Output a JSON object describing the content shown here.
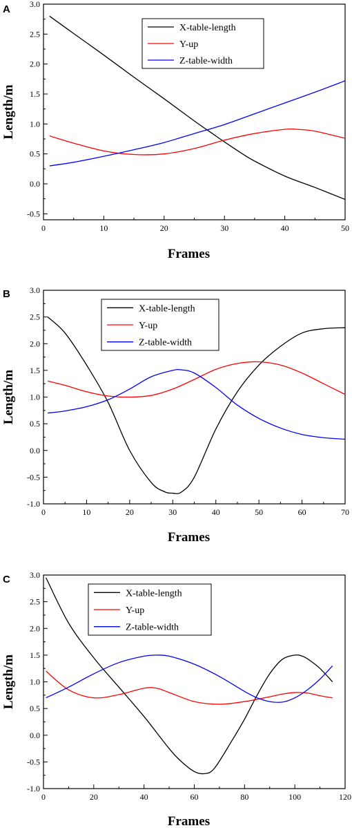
{
  "chart_data": [
    {
      "panel": "A",
      "type": "line",
      "xlabel": "Frames",
      "ylabel": "Length/m",
      "xlim": [
        0,
        50
      ],
      "ylim": [
        -0.6,
        3.0
      ],
      "xticks": [
        0,
        10,
        20,
        30,
        40,
        50
      ],
      "yticks": [
        -0.5,
        0.0,
        0.5,
        1.0,
        1.5,
        2.0,
        2.5,
        3.0
      ],
      "grid": false,
      "legend_position": "top-center",
      "series": [
        {
          "name": "X-table-length",
          "color": "#000000",
          "x": [
            1,
            5,
            10,
            15,
            20,
            25,
            28,
            30,
            33,
            35,
            40,
            45,
            50
          ],
          "y": [
            2.8,
            2.51,
            2.15,
            1.78,
            1.42,
            1.05,
            0.84,
            0.7,
            0.5,
            0.38,
            0.13,
            -0.06,
            -0.26
          ]
        },
        {
          "name": "Y-up",
          "color": "#ff0000",
          "x": [
            1,
            5,
            10,
            15,
            20,
            25,
            30,
            35,
            40,
            42,
            45,
            50
          ],
          "y": [
            0.8,
            0.68,
            0.55,
            0.49,
            0.5,
            0.59,
            0.73,
            0.84,
            0.91,
            0.91,
            0.88,
            0.76
          ]
        },
        {
          "name": "Z-table-width",
          "color": "#0000ff",
          "x": [
            1,
            5,
            10,
            15,
            20,
            25,
            30,
            35,
            40,
            45,
            50
          ],
          "y": [
            0.3,
            0.36,
            0.46,
            0.57,
            0.69,
            0.84,
            0.99,
            1.17,
            1.35,
            1.53,
            1.72
          ]
        }
      ]
    },
    {
      "panel": "B",
      "type": "line",
      "xlabel": "Frames",
      "ylabel": "Length/m",
      "xlim": [
        0,
        70
      ],
      "ylim": [
        -1.0,
        3.0
      ],
      "xticks": [
        0,
        10,
        20,
        30,
        40,
        50,
        60,
        70
      ],
      "yticks": [
        -1.0,
        -0.5,
        0.0,
        0.5,
        1.0,
        1.5,
        2.0,
        2.5,
        3.0
      ],
      "grid": false,
      "legend_position": "top-left",
      "series": [
        {
          "name": "X-table-length",
          "color": "#000000",
          "x": [
            1,
            5,
            10,
            15,
            20,
            25,
            28,
            30,
            32,
            35,
            40,
            45,
            50,
            55,
            60,
            65,
            70
          ],
          "y": [
            2.5,
            2.2,
            1.6,
            0.9,
            0.0,
            -0.6,
            -0.77,
            -0.8,
            -0.78,
            -0.5,
            0.4,
            1.1,
            1.6,
            1.95,
            2.2,
            2.28,
            2.3
          ]
        },
        {
          "name": "Y-up",
          "color": "#ff0000",
          "x": [
            1,
            5,
            10,
            15,
            20,
            25,
            30,
            35,
            40,
            45,
            50,
            55,
            60,
            65,
            70
          ],
          "y": [
            1.3,
            1.22,
            1.1,
            1.02,
            1.0,
            1.03,
            1.15,
            1.33,
            1.52,
            1.63,
            1.66,
            1.6,
            1.45,
            1.25,
            1.05
          ]
        },
        {
          "name": "Z-table-width",
          "color": "#0000ff",
          "x": [
            1,
            5,
            10,
            15,
            20,
            25,
            30,
            32,
            35,
            40,
            45,
            50,
            55,
            60,
            65,
            70
          ],
          "y": [
            0.7,
            0.74,
            0.82,
            0.95,
            1.15,
            1.38,
            1.5,
            1.51,
            1.45,
            1.18,
            0.85,
            0.6,
            0.42,
            0.3,
            0.24,
            0.21
          ]
        }
      ]
    },
    {
      "panel": "C",
      "type": "line",
      "xlabel": "Frames",
      "ylabel": "Length/m",
      "xlim": [
        0,
        120
      ],
      "ylim": [
        -1.0,
        3.0
      ],
      "xticks": [
        0,
        20,
        40,
        60,
        80,
        100,
        120
      ],
      "yticks": [
        -1.0,
        -0.5,
        0.0,
        0.5,
        1.0,
        1.5,
        2.0,
        2.5,
        3.0
      ],
      "grid": false,
      "legend_position": "top-left",
      "series": [
        {
          "name": "X-table-length",
          "color": "#000000",
          "x": [
            1,
            10,
            20,
            30,
            40,
            50,
            55,
            60,
            64,
            68,
            75,
            80,
            85,
            90,
            95,
            100,
            103,
            106,
            110,
            115
          ],
          "y": [
            2.95,
            2.1,
            1.45,
            0.9,
            0.35,
            -0.25,
            -0.5,
            -0.68,
            -0.72,
            -0.62,
            -0.1,
            0.3,
            0.75,
            1.15,
            1.42,
            1.5,
            1.48,
            1.4,
            1.25,
            1.0
          ]
        },
        {
          "name": "Y-up",
          "color": "#ff0000",
          "x": [
            1,
            10,
            20,
            30,
            40,
            45,
            50,
            60,
            70,
            80,
            90,
            95,
            100,
            105,
            110,
            115
          ],
          "y": [
            1.2,
            0.85,
            0.7,
            0.76,
            0.88,
            0.88,
            0.8,
            0.63,
            0.58,
            0.63,
            0.72,
            0.77,
            0.8,
            0.79,
            0.74,
            0.7
          ]
        },
        {
          "name": "Z-table-width",
          "color": "#0000ff",
          "x": [
            1,
            10,
            20,
            30,
            40,
            45,
            50,
            60,
            70,
            80,
            85,
            90,
            95,
            100,
            105,
            110,
            115
          ],
          "y": [
            0.7,
            0.9,
            1.15,
            1.36,
            1.48,
            1.5,
            1.48,
            1.33,
            1.1,
            0.82,
            0.7,
            0.63,
            0.62,
            0.7,
            0.85,
            1.05,
            1.3
          ]
        }
      ]
    }
  ]
}
